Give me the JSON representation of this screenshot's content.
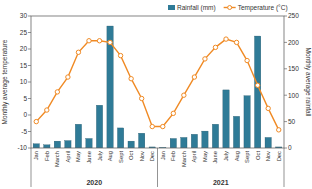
{
  "chart_data": {
    "type": "bar",
    "categories": [
      "Jan",
      "Feb",
      "March",
      "April",
      "May",
      "June",
      "July",
      "Aug",
      "Sept",
      "Oct",
      "Nov",
      "Dec",
      "Jan",
      "Feb",
      "March",
      "April",
      "May",
      "June",
      "July",
      "Aug",
      "Sept",
      "Oct",
      "Nov",
      "Dec"
    ],
    "group_labels": [
      "2020",
      "2021"
    ],
    "y_label": "Monthly average temperature",
    "y2_label": "Monthly average rainfall",
    "ylim": [
      -10,
      30
    ],
    "yticks": [
      -10,
      -5,
      0,
      5,
      10,
      15,
      20,
      25,
      30
    ],
    "y2lim": [
      0,
      250
    ],
    "y2ticks": [
      0,
      50,
      100,
      150,
      200,
      250
    ],
    "legend": "top",
    "series": [
      {
        "name": "Rainfall (mm)",
        "type": "bar",
        "axis": "y2",
        "color": "#2f7b97",
        "values": [
          8,
          6,
          13,
          14,
          45,
          18,
          81,
          231,
          38,
          13,
          28,
          2,
          1,
          18,
          20,
          26,
          32,
          45,
          110,
          60,
          99,
          212,
          20,
          2
        ]
      },
      {
        "name": "Temperature (°C)",
        "type": "line",
        "color": "#f08a24",
        "marker": "circle",
        "line_style": "solid",
        "values": [
          -2,
          1.5,
          7,
          11.5,
          19,
          22.5,
          22.5,
          22,
          18,
          11,
          5,
          -3.5,
          -3.5,
          0.5,
          6,
          11.5,
          17,
          20.5,
          23,
          22,
          16.5,
          9,
          2,
          -4.5
        ]
      }
    ]
  }
}
